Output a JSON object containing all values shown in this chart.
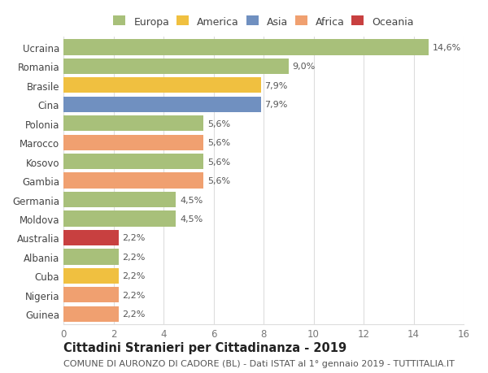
{
  "countries": [
    "Ucraina",
    "Romania",
    "Brasile",
    "Cina",
    "Polonia",
    "Marocco",
    "Kosovo",
    "Gambia",
    "Germania",
    "Moldova",
    "Australia",
    "Albania",
    "Cuba",
    "Nigeria",
    "Guinea"
  ],
  "values": [
    14.6,
    9.0,
    7.9,
    7.9,
    5.6,
    5.6,
    5.6,
    5.6,
    4.5,
    4.5,
    2.2,
    2.2,
    2.2,
    2.2,
    2.2
  ],
  "labels": [
    "14,6%",
    "9,0%",
    "7,9%",
    "7,9%",
    "5,6%",
    "5,6%",
    "5,6%",
    "5,6%",
    "4,5%",
    "4,5%",
    "2,2%",
    "2,2%",
    "2,2%",
    "2,2%",
    "2,2%"
  ],
  "bar_colors": [
    "#a8c07a",
    "#a8c07a",
    "#f0c040",
    "#7090c0",
    "#a8c07a",
    "#f0a070",
    "#a8c07a",
    "#f0a070",
    "#a8c07a",
    "#a8c07a",
    "#c84040",
    "#a8c07a",
    "#f0c040",
    "#f0a070",
    "#f0a070"
  ],
  "legend_labels": [
    "Europa",
    "America",
    "Asia",
    "Africa",
    "Oceania"
  ],
  "legend_colors": [
    "#a8c07a",
    "#f0c040",
    "#7090c0",
    "#f0a070",
    "#c84040"
  ],
  "xlim": [
    0,
    16
  ],
  "xticks": [
    0,
    2,
    4,
    6,
    8,
    10,
    12,
    14,
    16
  ],
  "title": "Cittadini Stranieri per Cittadinanza - 2019",
  "subtitle": "COMUNE DI AURONZO DI CADORE (BL) - Dati ISTAT al 1° gennaio 2019 - TUTTITALIA.IT",
  "bg_color": "#ffffff",
  "grid_color": "#dddddd",
  "bar_height": 0.82,
  "label_fontsize": 8.0,
  "title_fontsize": 10.5,
  "subtitle_fontsize": 8.0,
  "ytick_fontsize": 8.5,
  "xtick_fontsize": 8.5,
  "legend_fontsize": 9.0
}
